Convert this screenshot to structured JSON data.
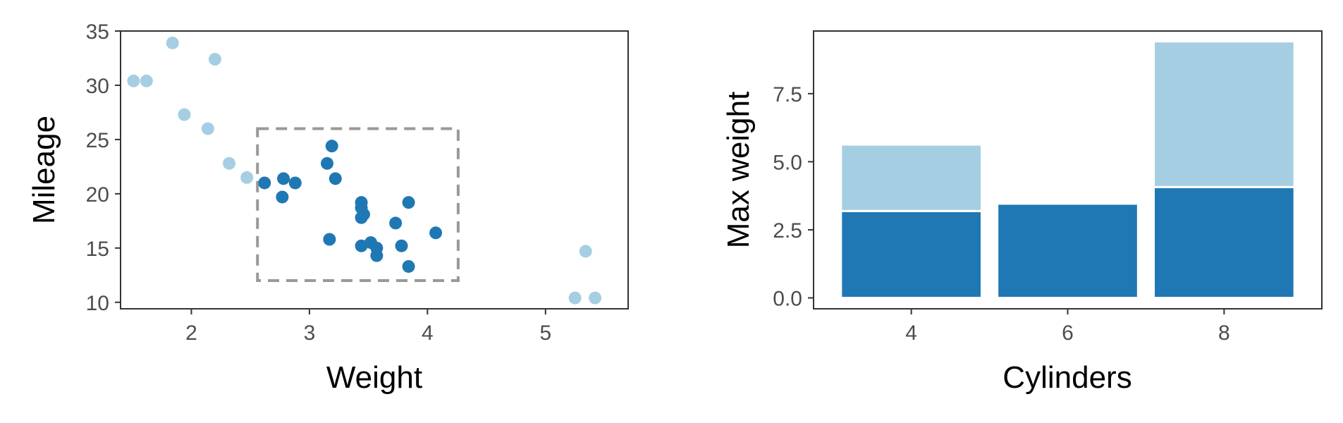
{
  "chart_data": [
    {
      "type": "scatter",
      "title": "",
      "xlabel": "Weight",
      "ylabel": "Mileage",
      "xlim": [
        1.4,
        5.7
      ],
      "ylim": [
        9.4,
        35
      ],
      "xticks": [
        "2",
        "3",
        "4",
        "5"
      ],
      "xtick_values": [
        2,
        3,
        4,
        5
      ],
      "yticks": [
        "10",
        "15",
        "20",
        "25",
        "30",
        "35"
      ],
      "ytick_values": [
        10,
        15,
        20,
        25,
        30,
        35
      ],
      "grid": false,
      "highlight_box": {
        "x": [
          2.56,
          4.26
        ],
        "y": [
          12,
          26
        ],
        "style": "dashed"
      },
      "series": [
        {
          "color": "#a6cee3",
          "points": [
            [
              1.51,
              30.4
            ],
            [
              1.62,
              30.4
            ],
            [
              1.84,
              33.9
            ],
            [
              1.94,
              27.3
            ],
            [
              2.14,
              26.0
            ],
            [
              2.2,
              32.4
            ],
            [
              2.32,
              22.8
            ],
            [
              2.47,
              21.5
            ],
            [
              5.25,
              10.4
            ],
            [
              5.34,
              14.7
            ],
            [
              5.42,
              10.4
            ]
          ]
        },
        {
          "color": "#1f78b4",
          "points": [
            [
              2.62,
              21.0
            ],
            [
              2.78,
              21.4
            ],
            [
              2.77,
              19.7
            ],
            [
              2.88,
              21.0
            ],
            [
              3.15,
              22.8
            ],
            [
              3.19,
              24.4
            ],
            [
              3.22,
              21.4
            ],
            [
              3.17,
              15.8
            ],
            [
              3.44,
              19.2
            ],
            [
              3.44,
              18.7
            ],
            [
              3.46,
              18.1
            ],
            [
              3.44,
              17.8
            ],
            [
              3.44,
              15.2
            ],
            [
              3.52,
              15.5
            ],
            [
              3.57,
              15.0
            ],
            [
              3.57,
              14.3
            ],
            [
              3.73,
              17.3
            ],
            [
              3.78,
              15.2
            ],
            [
              3.84,
              19.2
            ],
            [
              3.84,
              13.3
            ],
            [
              4.07,
              16.4
            ]
          ]
        }
      ]
    },
    {
      "type": "bar",
      "stacked": true,
      "title": "",
      "xlabel": "Cylinders",
      "ylabel": "Max weight",
      "categories": [
        "4",
        "6",
        "8"
      ],
      "ylim": [
        -0.4,
        9.8
      ],
      "yticks": [
        "0.0",
        "2.5",
        "5.0",
        "7.5"
      ],
      "ytick_values": [
        0,
        2.5,
        5,
        7.5
      ],
      "grid": false,
      "series": [
        {
          "color": "#1f78b4",
          "values": [
            3.19,
            3.46,
            4.07
          ]
        },
        {
          "color": "#a6cee3",
          "values": [
            2.44,
            0,
            5.35
          ]
        }
      ]
    }
  ]
}
